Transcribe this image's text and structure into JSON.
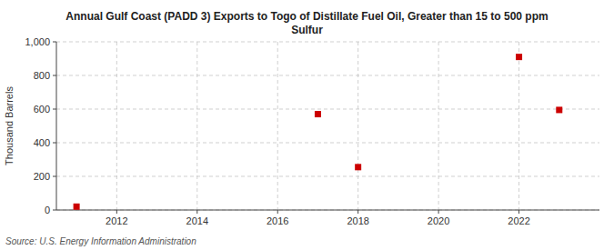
{
  "chart_data": {
    "type": "scatter",
    "title": "Annual Gulf Coast (PADD 3) Exports to Togo of Distillate Fuel Oil, Greater than 15 to 500 ppm\nSulfur",
    "y_label": "Thousand Barrels",
    "annotations": [
      "Source: U.S. Energy Information Administration"
    ],
    "x": [
      2011,
      2017,
      2018,
      2022,
      2023
    ],
    "values": [
      20,
      570,
      255,
      910,
      595
    ],
    "color": "#cc0000",
    "marker": "square",
    "xlim": [
      2010.5,
      2024.0
    ],
    "ylim": [
      0,
      1000
    ],
    "xticks": [
      2012,
      2014,
      2016,
      2018,
      2020,
      2022
    ],
    "yticks": [
      0,
      200,
      400,
      600,
      800,
      {
        "value": 1000,
        "label": "1,000"
      }
    ],
    "grid": true
  }
}
